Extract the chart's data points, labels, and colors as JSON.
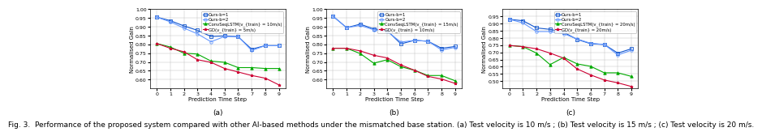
{
  "caption": "Fig. 3.  Performance of the proposed system compared with other AI-based methods under the mismatched base station. (a) Test velocity is 10 m/s ; (b) Test velocity is 15 m/s ; (c) Test velocity is 20 m/s.",
  "subplots": [
    {
      "label": "(a)",
      "x": [
        0,
        1,
        2,
        3,
        4,
        5,
        6,
        7,
        8,
        9
      ],
      "series": [
        {
          "name": "Ours-b=1",
          "color": "#1155cc",
          "marker": "s",
          "markerface": "none",
          "linestyle": "-",
          "values": [
            0.955,
            0.935,
            0.905,
            0.88,
            0.845,
            0.848,
            0.843,
            0.773,
            0.793,
            0.793
          ]
        },
        {
          "name": "Ours-b=2",
          "color": "#6699ff",
          "marker": "o",
          "markerface": "none",
          "linestyle": "-",
          "values": [
            0.955,
            0.928,
            0.893,
            0.86,
            0.815,
            0.845,
            0.845,
            0.765,
            0.793,
            0.793
          ]
        },
        {
          "name": "ConvSeqLSTM(v_train = 10m/s)",
          "color": "#00aa00",
          "marker": "^",
          "markerface": "filled",
          "linestyle": "-",
          "values": [
            0.805,
            0.785,
            0.75,
            0.745,
            0.705,
            0.698,
            0.668,
            0.668,
            0.663,
            0.663
          ]
        },
        {
          "name": "GD(v_train = 5m/s)",
          "color": "#cc0033",
          "marker": "*",
          "markerface": "filled",
          "linestyle": "-",
          "values": [
            0.805,
            0.778,
            0.758,
            0.713,
            0.698,
            0.663,
            0.643,
            0.623,
            0.608,
            0.57
          ]
        }
      ],
      "ylim": [
        0.55,
        1.0
      ],
      "yticks": [
        0.6,
        0.65,
        0.7,
        0.75,
        0.8,
        0.85,
        0.9,
        0.95,
        1.0
      ],
      "ylabel": "Normalised Gain"
    },
    {
      "label": "(b)",
      "x": [
        0,
        1,
        2,
        3,
        4,
        5,
        6,
        7,
        8,
        9
      ],
      "series": [
        {
          "name": "Ours-b=1",
          "color": "#1155cc",
          "marker": "s",
          "markerface": "none",
          "linestyle": "-",
          "values": [
            0.96,
            0.895,
            0.915,
            0.888,
            0.878,
            0.803,
            0.823,
            0.818,
            0.778,
            0.788
          ]
        },
        {
          "name": "Ours-b=2",
          "color": "#6699ff",
          "marker": "o",
          "markerface": "none",
          "linestyle": "-",
          "values": [
            0.96,
            0.895,
            0.908,
            0.883,
            0.873,
            0.813,
            0.823,
            0.818,
            0.768,
            0.783
          ]
        },
        {
          "name": "ConvSeqLSTM(v_train = 15m/s)",
          "color": "#00aa00",
          "marker": "^",
          "markerface": "filled",
          "linestyle": "-",
          "values": [
            0.778,
            0.778,
            0.748,
            0.693,
            0.713,
            0.673,
            0.653,
            0.623,
            0.623,
            0.593
          ]
        },
        {
          "name": "GD(v_train = 10m/s)",
          "color": "#cc0033",
          "marker": "*",
          "markerface": "filled",
          "linestyle": "-",
          "values": [
            0.778,
            0.778,
            0.763,
            0.738,
            0.723,
            0.683,
            0.653,
            0.618,
            0.603,
            0.578
          ]
        }
      ],
      "ylim": [
        0.55,
        1.0
      ],
      "yticks": [
        0.6,
        0.65,
        0.7,
        0.75,
        0.8,
        0.85,
        0.9,
        0.95,
        1.0
      ],
      "ylabel": "Normalised Gain"
    },
    {
      "label": "(c)",
      "x": [
        0,
        1,
        2,
        3,
        4,
        5,
        6,
        7,
        8,
        9
      ],
      "series": [
        {
          "name": "Ours-b=1",
          "color": "#1155cc",
          "marker": "s",
          "markerface": "none",
          "linestyle": "-",
          "values": [
            0.93,
            0.92,
            0.87,
            0.86,
            0.84,
            0.79,
            0.76,
            0.755,
            0.695,
            0.725
          ]
        },
        {
          "name": "Ours-b=2",
          "color": "#6699ff",
          "marker": "o",
          "markerface": "none",
          "linestyle": "-",
          "values": [
            0.93,
            0.905,
            0.845,
            0.845,
            0.83,
            0.793,
            0.763,
            0.755,
            0.682,
            0.715
          ]
        },
        {
          "name": "ConvSeqLSTM(v_train = 20m/s)",
          "color": "#00aa00",
          "marker": "^",
          "markerface": "filled",
          "linestyle": "-",
          "values": [
            0.748,
            0.74,
            0.695,
            0.615,
            0.665,
            0.62,
            0.603,
            0.558,
            0.558,
            0.533
          ]
        },
        {
          "name": "GD(v_train = 20m/s)",
          "color": "#cc0033",
          "marker": "*",
          "markerface": "filled",
          "linestyle": "-",
          "values": [
            0.748,
            0.74,
            0.725,
            0.695,
            0.66,
            0.585,
            0.543,
            0.508,
            0.488,
            0.463
          ]
        }
      ],
      "ylim": [
        0.45,
        1.0
      ],
      "yticks": [
        0.5,
        0.55,
        0.6,
        0.65,
        0.7,
        0.75,
        0.8,
        0.85,
        0.9,
        0.95
      ],
      "ylabel": "Normalised Gain"
    }
  ],
  "legend_entries": [
    [
      "Ours-b=1",
      "Ours-b=2",
      "ConvSeqLSTM(v_{train} = 10m/s)",
      "GD(v_{train} = 5m/s)"
    ],
    [
      "Ours-b=1",
      "Ours-b=2",
      "ConvSeqLSTM(v_{train} = 15m/s)",
      "GD(v_{train} = 10m/s)"
    ],
    [
      "Ours-b=1",
      "Ours-b=2",
      "ConvSeqLSTM(v_{train} = 20m/s)",
      "GD(v_{train} = 20m/s)"
    ]
  ],
  "xlabel": "Prediction Time Step",
  "tick_fontsize": 4.5,
  "label_fontsize": 5.0,
  "legend_fontsize": 3.8,
  "sublabel_fontsize": 6.5,
  "caption_fontsize": 6.5
}
